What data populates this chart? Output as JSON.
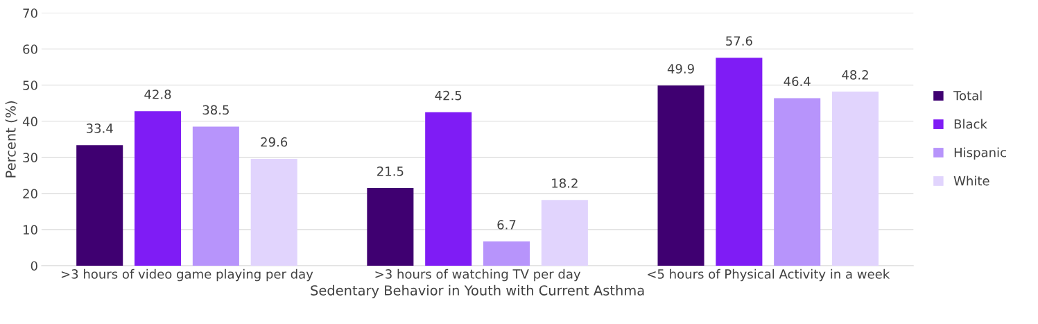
{
  "chart_data": {
    "type": "bar",
    "xlabel": "Sedentary Behavior in Youth with Current Asthma",
    "ylabel": "Percent (%)",
    "categories": [
      ">3 hours of video game playing per day",
      ">3 hours of watching TV per day",
      "<5 hours of Physical Activity in a week"
    ],
    "series": [
      {
        "name": "Total",
        "color": "#3f0071",
        "values": [
          33.4,
          21.5,
          49.9
        ]
      },
      {
        "name": "Black",
        "color": "#7f1cf5",
        "values": [
          42.8,
          42.5,
          57.6
        ]
      },
      {
        "name": "Hispanic",
        "color": "#b794fb",
        "values": [
          38.5,
          6.7,
          46.4
        ]
      },
      {
        "name": "White",
        "color": "#e1d4fd",
        "values": [
          29.6,
          18.2,
          48.2
        ]
      }
    ],
    "ylim": [
      0,
      70
    ],
    "yticks": [
      0,
      10,
      20,
      30,
      40,
      50,
      60,
      70
    ],
    "grid": "y",
    "legend": "right",
    "data_labels": true
  }
}
